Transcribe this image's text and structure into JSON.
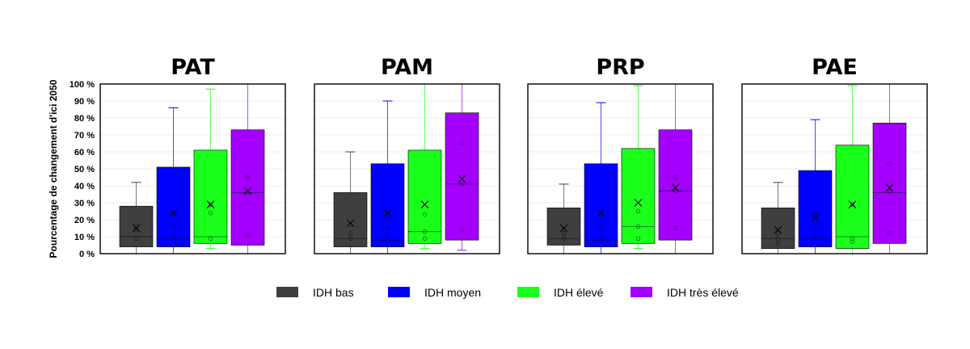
{
  "chart_data": {
    "type": "boxplot",
    "ylabel": "Pourcentage de changement d'ici 2050",
    "ylim": [
      0,
      100
    ],
    "yticks": [
      0,
      10,
      20,
      30,
      40,
      50,
      60,
      70,
      80,
      90,
      100
    ],
    "ytick_labels": [
      "0 %",
      "10 %",
      "20 %",
      "30 %",
      "40 %",
      "50 %",
      "60 %",
      "70 %",
      "80 %",
      "90 %",
      "100 %"
    ],
    "series": [
      {
        "name": "IDH bas",
        "color": "#3f3f3f"
      },
      {
        "name": "IDH moyen",
        "color": "#0000ff"
      },
      {
        "name": "IDH élevé",
        "color": "#1aff1a"
      },
      {
        "name": "IDH très élevé",
        "color": "#a300ff"
      }
    ],
    "panels": [
      {
        "title": "PAT",
        "boxes": [
          {
            "min": 0,
            "q1": 4,
            "median": 10,
            "q3": 28,
            "max": 42,
            "mean": 15,
            "points": [
              9,
              14,
              16
            ]
          },
          {
            "min": 0,
            "q1": 4,
            "median": 9,
            "q3": 51,
            "max": 86,
            "mean": 24,
            "points": [
              10,
              16,
              24
            ]
          },
          {
            "min": 3,
            "q1": 6,
            "median": 10,
            "q3": 61,
            "max": 97,
            "mean": 29,
            "points": [
              9,
              24,
              29
            ]
          },
          {
            "min": 0,
            "q1": 5,
            "median": 36,
            "q3": 73,
            "max": 100,
            "mean": 37,
            "points": [
              11,
              36,
              45
            ]
          }
        ]
      },
      {
        "title": "PAM",
        "boxes": [
          {
            "min": 0,
            "q1": 4,
            "median": 9,
            "q3": 36,
            "max": 60,
            "mean": 18,
            "points": [
              9,
              12,
              17
            ]
          },
          {
            "min": 0,
            "q1": 4,
            "median": 8,
            "q3": 53,
            "max": 90,
            "mean": 24,
            "points": [
              10,
              15,
              24
            ]
          },
          {
            "min": 3,
            "q1": 6,
            "median": 13,
            "q3": 61,
            "max": 100,
            "mean": 29,
            "points": [
              9,
              13,
              23
            ]
          },
          {
            "min": 2,
            "q1": 8,
            "median": 41,
            "q3": 83,
            "max": 100,
            "mean": 44,
            "points": [
              14,
              41,
              65
            ]
          }
        ]
      },
      {
        "title": "PRP",
        "boxes": [
          {
            "min": 0,
            "q1": 5,
            "median": 9,
            "q3": 27,
            "max": 41,
            "mean": 15,
            "points": [
              9,
              12,
              14
            ]
          },
          {
            "min": 0,
            "q1": 4,
            "median": 8,
            "q3": 53,
            "max": 89,
            "mean": 24,
            "points": [
              10,
              16,
              24
            ]
          },
          {
            "min": 3,
            "q1": 6,
            "median": 16,
            "q3": 62,
            "max": 99,
            "mean": 30,
            "points": [
              9,
              16,
              25
            ]
          },
          {
            "min": 0,
            "q1": 8,
            "median": 37,
            "q3": 73,
            "max": 100,
            "mean": 39,
            "points": [
              15,
              37,
              45
            ]
          }
        ]
      },
      {
        "title": "PAE",
        "boxes": [
          {
            "min": 0,
            "q1": 3,
            "median": 9,
            "q3": 27,
            "max": 42,
            "mean": 14,
            "points": [
              6,
              9,
              12
            ]
          },
          {
            "min": 0,
            "q1": 4,
            "median": 9,
            "q3": 49,
            "max": 79,
            "mean": 21,
            "points": [
              10,
              17,
              24
            ]
          },
          {
            "min": 0,
            "q1": 3,
            "median": 10,
            "q3": 64,
            "max": 99,
            "mean": 29,
            "points": [
              7,
              9,
              29
            ]
          },
          {
            "min": 0,
            "q1": 6,
            "median": 36,
            "q3": 77,
            "max": 100,
            "mean": 39,
            "points": [
              12,
              37,
              53
            ]
          }
        ]
      }
    ]
  }
}
